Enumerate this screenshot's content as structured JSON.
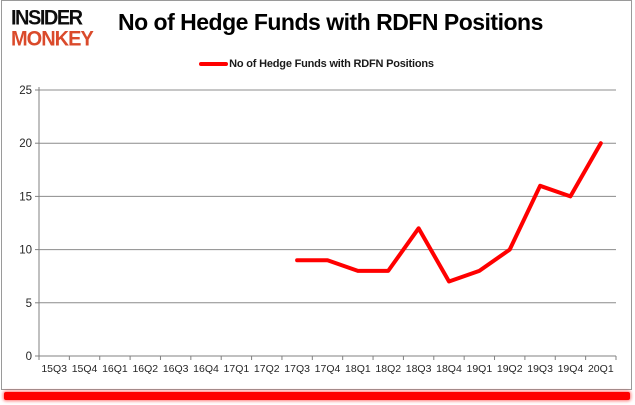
{
  "logo": {
    "line1": "INSIDER",
    "line2": "MONKEY"
  },
  "header": {
    "title": "No of Hedge Funds with RDFN Positions"
  },
  "legend": {
    "label": "No of Hedge Funds with RDFN Positions",
    "swatch_color": "#ff0000"
  },
  "chart_data": {
    "type": "line",
    "title": "No of Hedge Funds with RDFN Positions",
    "categories": [
      "15Q3",
      "15Q4",
      "16Q1",
      "16Q2",
      "16Q3",
      "16Q4",
      "17Q1",
      "17Q2",
      "17Q3",
      "17Q4",
      "18Q1",
      "18Q2",
      "18Q3",
      "18Q4",
      "19Q1",
      "19Q2",
      "19Q3",
      "19Q4",
      "20Q1"
    ],
    "series": [
      {
        "name": "No of Hedge Funds with RDFN Positions",
        "color": "#ff0000",
        "values": [
          null,
          null,
          null,
          null,
          null,
          null,
          null,
          null,
          9,
          9,
          8,
          8,
          12,
          7,
          8,
          10,
          16,
          15,
          20
        ]
      }
    ],
    "xlabel": "",
    "ylabel": "",
    "ylim": [
      0,
      25
    ],
    "yticks": [
      0,
      5,
      10,
      15,
      20,
      25
    ],
    "grid": true,
    "legend_position": "top-center"
  },
  "colors": {
    "line_red": "#ff0000",
    "logo_red": "#da4a2b",
    "grid_gray": "#8c8c8c",
    "axis_gray": "#808080",
    "label_text": "#262626",
    "frame_border": "#9a9a9a",
    "bottom_bar_red": "#ff0000"
  }
}
